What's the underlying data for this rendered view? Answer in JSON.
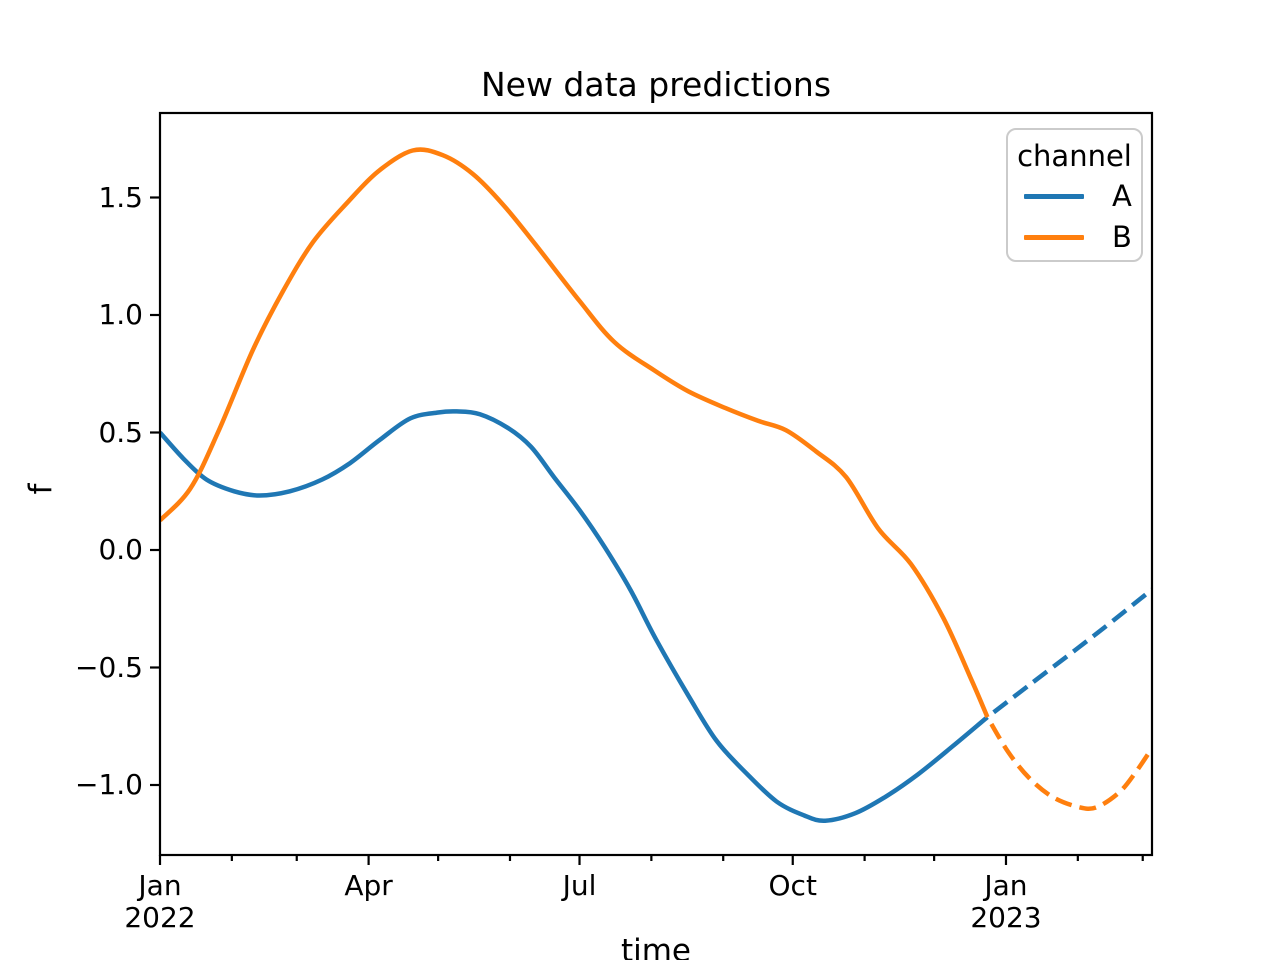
{
  "title": "New data predictions",
  "axes": {
    "xlabel": "time",
    "ylabel": "f"
  },
  "legend": {
    "title": "channel",
    "entries": [
      {
        "label": "A",
        "color": "#1f77b4"
      },
      {
        "label": "B",
        "color": "#ff7f0e"
      }
    ],
    "position": "upper right"
  },
  "chart_data": {
    "type": "line",
    "title": "New data predictions",
    "xlabel": "time",
    "ylabel": "f",
    "x_unit": "days since 2022-01-01",
    "xlim_days": [
      0,
      428
    ],
    "ylim": [
      -1.3,
      1.86
    ],
    "grid": false,
    "x_major_ticks": [
      {
        "day": 0,
        "label": "Jan",
        "year": "2022"
      },
      {
        "day": 90,
        "label": "Apr",
        "year": ""
      },
      {
        "day": 181,
        "label": "Jul",
        "year": ""
      },
      {
        "day": 273,
        "label": "Oct",
        "year": ""
      },
      {
        "day": 365,
        "label": "Jan",
        "year": "2023"
      }
    ],
    "x_minor_tick_days": [
      31,
      59,
      120,
      151,
      212,
      243,
      304,
      334,
      396,
      424
    ],
    "y_ticks": [
      {
        "value": 1.5,
        "label": "1.5"
      },
      {
        "value": 1.0,
        "label": "1.0"
      },
      {
        "value": 0.5,
        "label": "0.5"
      },
      {
        "value": 0.0,
        "label": "0.0"
      },
      {
        "value": -0.5,
        "label": "−0.5"
      },
      {
        "value": -1.0,
        "label": "−1.0"
      }
    ],
    "series": [
      {
        "name": "A",
        "segment": "observed",
        "style": "solid",
        "color": "#1f77b4",
        "points": [
          [
            0,
            0.5
          ],
          [
            10,
            0.39
          ],
          [
            20,
            0.3
          ],
          [
            32,
            0.25
          ],
          [
            43,
            0.232
          ],
          [
            56,
            0.25
          ],
          [
            70,
            0.3
          ],
          [
            82,
            0.37
          ],
          [
            95,
            0.47
          ],
          [
            108,
            0.56
          ],
          [
            120,
            0.585
          ],
          [
            128,
            0.59
          ],
          [
            138,
            0.578
          ],
          [
            150,
            0.52
          ],
          [
            160,
            0.44
          ],
          [
            170,
            0.31
          ],
          [
            181,
            0.17
          ],
          [
            192,
            0.01
          ],
          [
            203,
            -0.17
          ],
          [
            214,
            -0.38
          ],
          [
            228,
            -0.62
          ],
          [
            240,
            -0.81
          ],
          [
            253,
            -0.95
          ],
          [
            266,
            -1.07
          ],
          [
            278,
            -1.13
          ],
          [
            287,
            -1.152
          ],
          [
            300,
            -1.12
          ],
          [
            313,
            -1.05
          ],
          [
            327,
            -0.955
          ],
          [
            342,
            -0.835
          ],
          [
            357,
            -0.711
          ]
        ]
      },
      {
        "name": "A",
        "segment": "predicted",
        "style": "dashed",
        "color": "#1f77b4",
        "points": [
          [
            357,
            -0.711
          ],
          [
            375,
            -0.575
          ],
          [
            395,
            -0.425
          ],
          [
            410,
            -0.31
          ],
          [
            428,
            -0.168
          ]
        ]
      },
      {
        "name": "B",
        "segment": "observed",
        "style": "solid",
        "color": "#ff7f0e",
        "points": [
          [
            0,
            0.126
          ],
          [
            13,
            0.26
          ],
          [
            25,
            0.5
          ],
          [
            40,
            0.85
          ],
          [
            53,
            1.1
          ],
          [
            66,
            1.31
          ],
          [
            81,
            1.48
          ],
          [
            94,
            1.61
          ],
          [
            109,
            1.7
          ],
          [
            122,
            1.68
          ],
          [
            135,
            1.6
          ],
          [
            148,
            1.47
          ],
          [
            162,
            1.3
          ],
          [
            181,
            1.06
          ],
          [
            196,
            0.885
          ],
          [
            213,
            0.766
          ],
          [
            228,
            0.675
          ],
          [
            244,
            0.604
          ],
          [
            258,
            0.55
          ],
          [
            270,
            0.51
          ],
          [
            283,
            0.42
          ],
          [
            296,
            0.31
          ],
          [
            310,
            0.09
          ],
          [
            324,
            -0.06
          ],
          [
            338,
            -0.29
          ],
          [
            350,
            -0.55
          ],
          [
            357,
            -0.711
          ]
        ]
      },
      {
        "name": "B",
        "segment": "predicted",
        "style": "dashed",
        "color": "#ff7f0e",
        "points": [
          [
            357,
            -0.711
          ],
          [
            366,
            -0.86
          ],
          [
            375,
            -0.97
          ],
          [
            385,
            -1.05
          ],
          [
            396,
            -1.093
          ],
          [
            404,
            -1.095
          ],
          [
            414,
            -1.03
          ],
          [
            421,
            -0.945
          ],
          [
            428,
            -0.843
          ]
        ]
      }
    ],
    "legend": {
      "title": "channel",
      "entries": [
        "A",
        "B"
      ],
      "position": "upper right"
    }
  }
}
